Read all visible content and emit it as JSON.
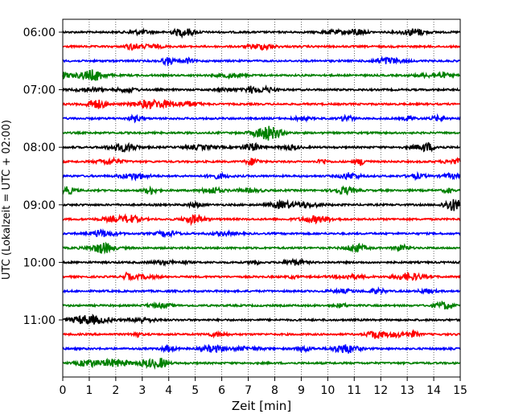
{
  "chart_data": {
    "type": "line",
    "title": "",
    "xlabel": "Zeit  [min]",
    "ylabel": "UTC (Lokalzeit = UTC + 02:00)",
    "xlim": [
      0,
      15
    ],
    "x_ticks": [
      0,
      1,
      2,
      3,
      4,
      5,
      6,
      7,
      8,
      9,
      10,
      11,
      12,
      13,
      14,
      15
    ],
    "y_ticks": [
      "06:00",
      "07:00",
      "08:00",
      "09:00",
      "10:00",
      "11:00"
    ],
    "y_tick_trace_index": [
      0,
      4,
      8,
      12,
      16,
      20
    ],
    "trace_minutes": 15,
    "x_grid": "dotted",
    "colors": [
      "#000000",
      "#ff0000",
      "#0000ff",
      "#008000"
    ],
    "traces": [
      {
        "start": "06:00",
        "color": "#000000"
      },
      {
        "start": "06:15",
        "color": "#ff0000"
      },
      {
        "start": "06:30",
        "color": "#0000ff"
      },
      {
        "start": "06:45",
        "color": "#008000"
      },
      {
        "start": "07:00",
        "color": "#000000"
      },
      {
        "start": "07:15",
        "color": "#ff0000"
      },
      {
        "start": "07:30",
        "color": "#0000ff"
      },
      {
        "start": "07:45",
        "color": "#008000"
      },
      {
        "start": "08:00",
        "color": "#000000"
      },
      {
        "start": "08:15",
        "color": "#ff0000"
      },
      {
        "start": "08:30",
        "color": "#0000ff"
      },
      {
        "start": "08:45",
        "color": "#008000"
      },
      {
        "start": "09:00",
        "color": "#000000"
      },
      {
        "start": "09:15",
        "color": "#ff0000"
      },
      {
        "start": "09:30",
        "color": "#0000ff"
      },
      {
        "start": "09:45",
        "color": "#008000"
      },
      {
        "start": "10:00",
        "color": "#000000"
      },
      {
        "start": "10:15",
        "color": "#ff0000"
      },
      {
        "start": "10:30",
        "color": "#0000ff"
      },
      {
        "start": "10:45",
        "color": "#008000"
      },
      {
        "start": "11:00",
        "color": "#000000"
      },
      {
        "start": "11:15",
        "color": "#ff0000"
      },
      {
        "start": "11:30",
        "color": "#0000ff"
      },
      {
        "start": "11:45",
        "color": "#008000"
      }
    ]
  }
}
